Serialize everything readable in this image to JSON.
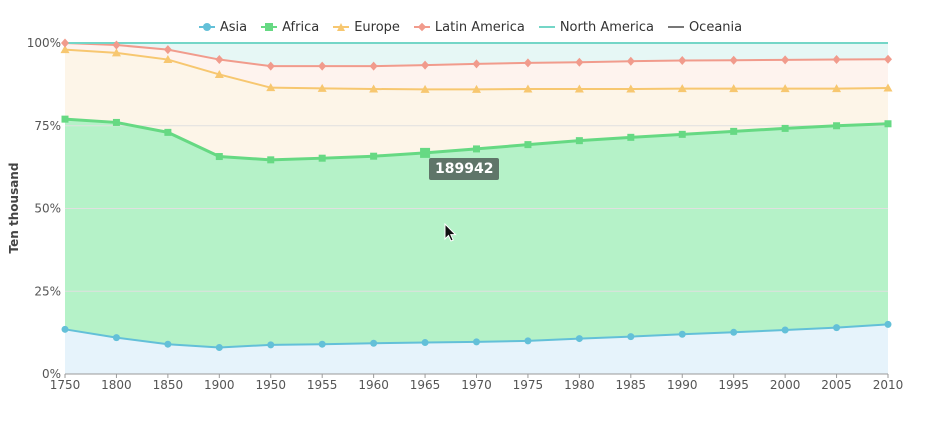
{
  "chart_data": {
    "type": "area",
    "stacked": "percent",
    "ylabel": "Ten thousand",
    "yticks": [
      "0%",
      "25%",
      "50%",
      "75%",
      "100%"
    ],
    "x": [
      "1750",
      "1800",
      "1850",
      "1900",
      "1950",
      "1955",
      "1960",
      "1965",
      "1970",
      "1975",
      "1980",
      "1985",
      "1990",
      "1995",
      "2000",
      "2005",
      "2010"
    ],
    "legend_position": "top",
    "grid": true,
    "series": [
      {
        "name": "Asia",
        "color": "#63c0d8",
        "marker": "circle",
        "cum": [
          13.5,
          11,
          9,
          8,
          8.8,
          9,
          9.3,
          9.5,
          9.7,
          10,
          10.7,
          11.3,
          12,
          12.6,
          13.3,
          14,
          15
        ]
      },
      {
        "name": "Africa",
        "color": "#66d983",
        "marker": "square",
        "cum": [
          77,
          76,
          73,
          65.7,
          64.7,
          65.2,
          65.8,
          66.8,
          68,
          69.3,
          70.5,
          71.5,
          72.4,
          73.3,
          74.2,
          75,
          75.6
        ]
      },
      {
        "name": "Europe",
        "color": "#f7c770",
        "marker": "triangle",
        "cum": [
          98,
          97,
          95,
          90.5,
          86.5,
          86.3,
          86.1,
          86,
          86,
          86.1,
          86.1,
          86.1,
          86.2,
          86.2,
          86.2,
          86.2,
          86.4
        ]
      },
      {
        "name": "Latin America",
        "color": "#f19b8c",
        "marker": "diamond",
        "cum": [
          100,
          99.4,
          98,
          95,
          93,
          93,
          93,
          93.3,
          93.7,
          94,
          94.2,
          94.5,
          94.7,
          94.8,
          94.9,
          95,
          95.1
        ]
      },
      {
        "name": "North America",
        "color": "#74d6c7",
        "marker": "none",
        "cum": [
          100,
          100,
          100,
          100,
          100,
          100,
          100,
          100,
          100,
          100,
          100,
          100,
          100,
          100,
          100,
          100,
          100
        ]
      },
      {
        "name": "Oceania",
        "color": "#777777",
        "marker": "none",
        "cum": [
          100,
          100,
          100,
          100,
          100,
          100,
          100,
          100,
          100,
          100,
          100,
          100,
          100,
          100,
          100,
          100,
          100
        ]
      }
    ],
    "tooltip": {
      "series": "Africa",
      "x": "1965",
      "value": "189942"
    }
  }
}
